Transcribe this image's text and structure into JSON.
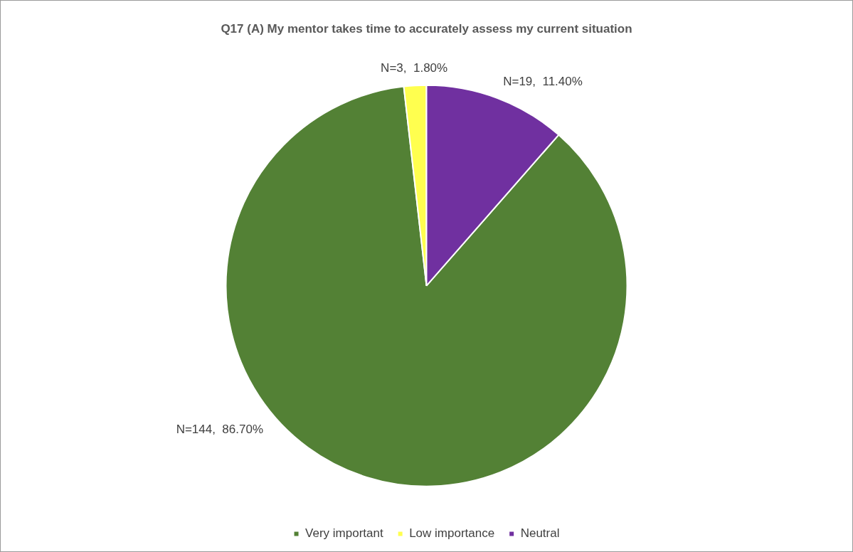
{
  "chart_data": {
    "type": "pie",
    "title": "Q17 (A) My mentor takes time to accurately assess my current situation",
    "categories": [
      "Very important",
      "Low importance",
      "Neutral"
    ],
    "values": [
      144,
      3,
      19
    ],
    "value_labels": [
      "N=144,  86.70%",
      "N=3,  1.80%",
      "N=19,  11.40%"
    ],
    "colors": [
      "#538135",
      "#ffff4f",
      "#7030a0"
    ],
    "legend": "bottom"
  }
}
